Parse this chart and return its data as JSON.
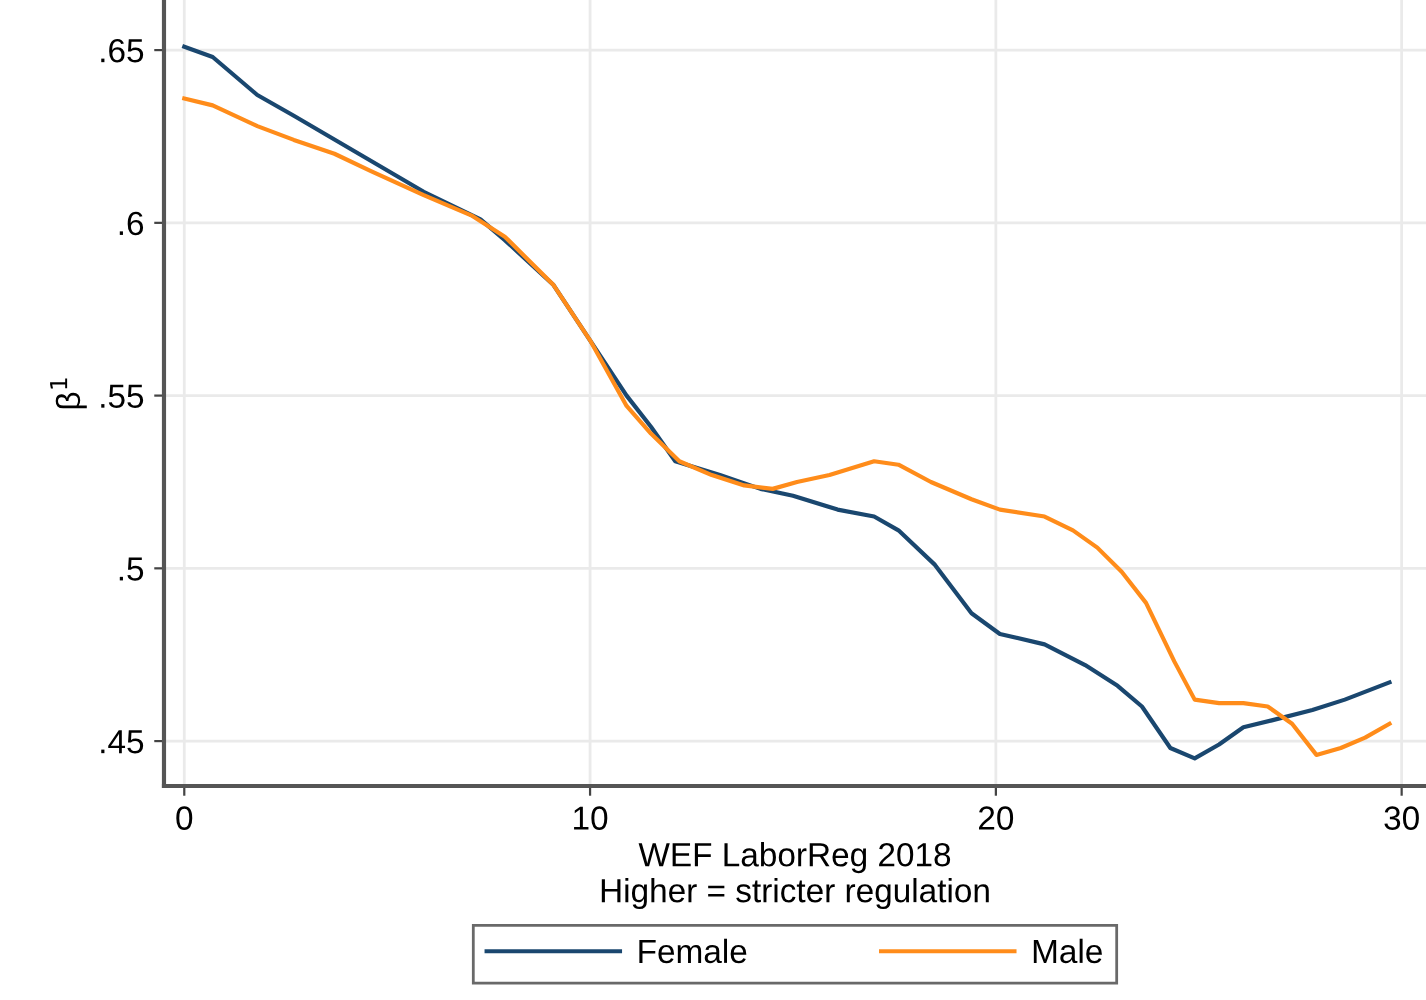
{
  "chart_data": {
    "type": "line",
    "xlabel": "WEF LaborReg 2018\nHigher = stricter regulation",
    "ylabel": "β$^{1}$",
    "xlim": [
      -0.5,
      30.6
    ],
    "xticks": [
      0,
      10,
      20,
      30
    ],
    "ylim": [
      0.437,
      0.6645
    ],
    "yticks": [
      {
        "value": 0.45,
        "label": ".45"
      },
      {
        "value": 0.5,
        "label": ".5"
      },
      {
        "value": 0.55,
        "label": ".55"
      },
      {
        "value": 0.6,
        "label": ".6"
      },
      {
        "value": 0.65,
        "label": ".65"
      }
    ],
    "grid": true,
    "legend": "bottom",
    "marker": "none",
    "line_style": "solid",
    "series": [
      {
        "name": "Female",
        "color": "#1a476f",
        "x": [
          0,
          0.7,
          1.8,
          2.7,
          4.3,
          5.9,
          7.3,
          7.9,
          9.1,
          10.0,
          10.9,
          11.5,
          12.1,
          13.2,
          14.2,
          15.0,
          16.1,
          17.0,
          17.6,
          18.5,
          19.4,
          20.1,
          21.2,
          22.2,
          23.0,
          23.6,
          24.3,
          24.9,
          25.5,
          26.1,
          26.8,
          27.8,
          28.6,
          29.7
        ],
        "values": [
          0.651,
          0.648,
          0.637,
          0.631,
          0.62,
          0.609,
          0.601,
          0.595,
          0.582,
          0.566,
          0.55,
          0.541,
          0.531,
          0.527,
          0.523,
          0.521,
          0.517,
          0.515,
          0.511,
          0.501,
          0.487,
          0.481,
          0.478,
          0.472,
          0.466,
          0.46,
          0.448,
          0.445,
          0.449,
          0.454,
          0.456,
          0.459,
          0.462,
          0.467
        ]
      },
      {
        "name": "Male",
        "color": "#ff8c1a",
        "x": [
          0,
          0.7,
          1.8,
          2.7,
          3.7,
          4.6,
          5.9,
          7.1,
          7.9,
          9.1,
          10.0,
          10.9,
          11.5,
          12.2,
          13.0,
          13.8,
          14.5,
          15.1,
          15.9,
          17.0,
          17.6,
          18.4,
          19.4,
          20.1,
          21.2,
          21.9,
          22.5,
          23.1,
          23.7,
          24.4,
          24.9,
          25.5,
          26.1,
          26.7,
          27.3,
          27.9,
          28.5,
          29.1,
          29.7
        ],
        "values": [
          0.636,
          0.634,
          0.628,
          0.624,
          0.62,
          0.615,
          0.608,
          0.602,
          0.596,
          0.582,
          0.566,
          0.547,
          0.539,
          0.531,
          0.527,
          0.524,
          0.523,
          0.525,
          0.527,
          0.531,
          0.53,
          0.525,
          0.52,
          0.517,
          0.515,
          0.511,
          0.506,
          0.499,
          0.49,
          0.473,
          0.462,
          0.461,
          0.461,
          0.46,
          0.455,
          0.446,
          0.448,
          0.451,
          0.455
        ]
      }
    ]
  }
}
